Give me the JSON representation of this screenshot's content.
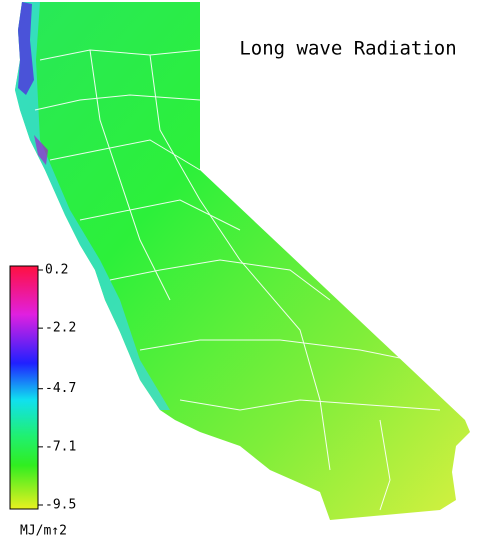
{
  "map": {
    "title": "Long wave Radiation",
    "colorbar": {
      "ticks": [
        0.2,
        -2.2,
        -4.7,
        -7.1,
        -9.5
      ],
      "unit": "MJ/m↑2"
    }
  }
}
